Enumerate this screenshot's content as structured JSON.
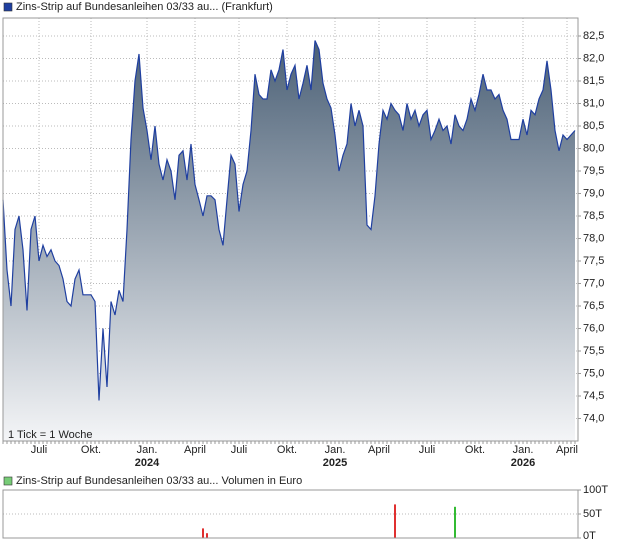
{
  "chart_data": [
    {
      "type": "area",
      "title": "Zins-Strip auf Bundesanleihen 03/33 au... (Frankfurt)",
      "annotation": "1 Tick = 1 Woche",
      "color": "#1f3fa0",
      "fill_top": "#4b6076",
      "fill_bottom": "#f4f5f7",
      "grid": true,
      "ylim": [
        73.5,
        82.9
      ],
      "yticks": [
        {
          "value": 74.0,
          "label": "74,0"
        },
        {
          "value": 74.5,
          "label": "74,5"
        },
        {
          "value": 75.0,
          "label": "75,0"
        },
        {
          "value": 75.5,
          "label": "75,5"
        },
        {
          "value": 76.0,
          "label": "76,0"
        },
        {
          "value": 76.5,
          "label": "76,5"
        },
        {
          "value": 77.0,
          "label": "77,0"
        },
        {
          "value": 77.5,
          "label": "77,5"
        },
        {
          "value": 78.0,
          "label": "78,0"
        },
        {
          "value": 78.5,
          "label": "78,5"
        },
        {
          "value": 79.0,
          "label": "79,0"
        },
        {
          "value": 79.5,
          "label": "79,5"
        },
        {
          "value": 80.0,
          "label": "80,0"
        },
        {
          "value": 80.5,
          "label": "80,5"
        },
        {
          "value": 81.0,
          "label": "81,0"
        },
        {
          "value": 81.5,
          "label": "81,5"
        },
        {
          "value": 82.0,
          "label": "82,0"
        },
        {
          "value": 82.5,
          "label": "82,5"
        }
      ],
      "categories": [
        null,
        null,
        null,
        null,
        null,
        null,
        null,
        null,
        null,
        "Juli",
        null,
        null,
        null,
        null,
        null,
        null,
        null,
        null,
        null,
        null,
        null,
        null,
        "Okt.",
        null,
        null,
        null,
        null,
        null,
        null,
        null,
        null,
        null,
        null,
        null,
        null,
        null,
        "Jan. 2024",
        null,
        null,
        null,
        null,
        null,
        null,
        null,
        null,
        null,
        null,
        null,
        "April",
        null,
        null,
        null,
        null,
        null,
        null,
        null,
        null,
        null,
        null,
        "Juli",
        null,
        null,
        null,
        null,
        null,
        null,
        null,
        null,
        null,
        null,
        null,
        "Okt.",
        null,
        null,
        null,
        null,
        null,
        null,
        null,
        null,
        null,
        null,
        null,
        "Jan. 2025",
        null,
        null,
        null,
        null,
        null,
        null,
        null,
        null,
        null,
        null,
        "April",
        null,
        null,
        null,
        null,
        null,
        null,
        null,
        null,
        null,
        null,
        null,
        "Juli",
        null,
        null,
        null,
        null,
        null,
        null,
        null,
        null,
        null,
        null,
        null,
        "Okt.",
        null,
        null,
        null,
        null,
        null,
        null,
        null,
        null,
        null,
        null,
        null,
        "Jan. 2026",
        null,
        null,
        null,
        null,
        null,
        null,
        null,
        null,
        null,
        null,
        "April",
        null,
        null
      ],
      "values": [
        78.86,
        77.3,
        76.5,
        78.2,
        78.5,
        77.75,
        76.4,
        78.2,
        78.5,
        77.5,
        77.85,
        77.6,
        77.75,
        77.5,
        77.4,
        77.1,
        76.6,
        76.5,
        77.1,
        77.3,
        76.75,
        76.75,
        76.75,
        76.6,
        74.4,
        76.0,
        74.7,
        76.6,
        76.3,
        76.85,
        76.6,
        78.2,
        80.2,
        81.5,
        82.1,
        80.9,
        80.4,
        79.75,
        80.5,
        79.65,
        79.3,
        79.75,
        79.5,
        78.86,
        79.85,
        79.95,
        79.3,
        80.1,
        79.2,
        78.86,
        78.5,
        78.95,
        78.95,
        78.86,
        78.2,
        77.85,
        78.86,
        79.85,
        79.65,
        78.6,
        79.2,
        79.5,
        80.4,
        81.65,
        81.2,
        81.1,
        81.1,
        81.75,
        81.5,
        81.75,
        82.2,
        81.3,
        81.65,
        81.85,
        81.1,
        81.45,
        81.85,
        81.3,
        82.4,
        82.2,
        81.45,
        81.1,
        80.9,
        80.3,
        79.5,
        79.85,
        80.1,
        81.0,
        80.5,
        80.85,
        80.5,
        78.3,
        78.2,
        78.95,
        80.1,
        80.85,
        80.65,
        81.0,
        80.85,
        80.75,
        80.4,
        81.0,
        80.65,
        80.85,
        80.5,
        80.75,
        80.85,
        80.2,
        80.4,
        80.65,
        80.4,
        80.5,
        80.1,
        80.75,
        80.5,
        80.4,
        80.65,
        81.1,
        80.85,
        81.2,
        81.65,
        81.3,
        81.3,
        81.1,
        81.2,
        80.85,
        80.65,
        80.2,
        80.2,
        80.2,
        80.65,
        80.3,
        80.85,
        80.75,
        81.1,
        81.3,
        81.95,
        81.3,
        80.4,
        79.95,
        80.3,
        80.2,
        80.3,
        80.4
      ]
    },
    {
      "type": "bar",
      "title": "Zins-Strip auf Bundesanleihen 03/33 au... Volumen in Euro",
      "legend_color": "#77cc77",
      "grid": true,
      "ylim": [
        0,
        100000
      ],
      "yticks": [
        {
          "value": 0,
          "label": "0T"
        },
        {
          "value": 50000,
          "label": "50T"
        },
        {
          "value": 100000,
          "label": "100T"
        }
      ],
      "series": [
        {
          "color": "#e03030",
          "values": [
            null,
            null,
            null,
            null,
            null,
            null,
            null,
            null,
            null,
            null,
            null,
            null,
            null,
            null,
            null,
            null,
            null,
            null,
            null,
            null,
            null,
            null,
            null,
            null,
            null,
            null,
            null,
            null,
            null,
            null,
            null,
            null,
            null,
            null,
            null,
            null,
            null,
            null,
            null,
            null,
            null,
            null,
            null,
            null,
            null,
            null,
            null,
            null,
            null,
            null,
            20000,
            10000,
            null,
            null,
            null,
            null,
            null,
            null,
            null,
            null,
            null,
            null,
            null,
            null,
            null,
            null,
            null,
            null,
            null,
            null,
            null,
            null,
            null,
            null,
            null,
            null,
            null,
            null,
            null,
            null,
            null,
            null,
            null,
            null,
            null,
            null,
            null,
            null,
            null,
            null,
            null,
            null,
            null,
            null,
            null,
            null,
            null,
            null,
            70000,
            null,
            null,
            null,
            null,
            null,
            null,
            null,
            null,
            null,
            null,
            null,
            null,
            null,
            null,
            null,
            null,
            null,
            null,
            null,
            null,
            null,
            null,
            null,
            null,
            null,
            null,
            null,
            null,
            null,
            null,
            null,
            null,
            null,
            null,
            null,
            null,
            null,
            null,
            null,
            null,
            null,
            null,
            null,
            null,
            null
          ]
        },
        {
          "color": "#33bb33",
          "values": [
            null,
            null,
            null,
            null,
            null,
            null,
            null,
            null,
            null,
            null,
            null,
            null,
            null,
            null,
            null,
            null,
            null,
            null,
            null,
            null,
            null,
            null,
            null,
            null,
            null,
            null,
            null,
            null,
            null,
            null,
            null,
            null,
            null,
            null,
            null,
            null,
            null,
            null,
            null,
            null,
            null,
            null,
            null,
            null,
            null,
            null,
            null,
            null,
            null,
            null,
            null,
            null,
            null,
            null,
            null,
            null,
            null,
            null,
            null,
            null,
            null,
            null,
            null,
            null,
            null,
            null,
            null,
            null,
            null,
            null,
            null,
            null,
            null,
            null,
            null,
            null,
            null,
            null,
            null,
            null,
            null,
            null,
            null,
            null,
            null,
            null,
            null,
            null,
            null,
            null,
            null,
            null,
            null,
            null,
            null,
            null,
            null,
            null,
            null,
            null,
            null,
            null,
            null,
            null,
            null,
            null,
            null,
            null,
            null,
            null,
            null,
            null,
            null,
            65000,
            null,
            null,
            null,
            null,
            null,
            null,
            null,
            null,
            null,
            null,
            null,
            null,
            null,
            null,
            null,
            null,
            null,
            null,
            null,
            null,
            null,
            null,
            null,
            null,
            null,
            null,
            null,
            null,
            null,
            null
          ]
        }
      ]
    }
  ]
}
